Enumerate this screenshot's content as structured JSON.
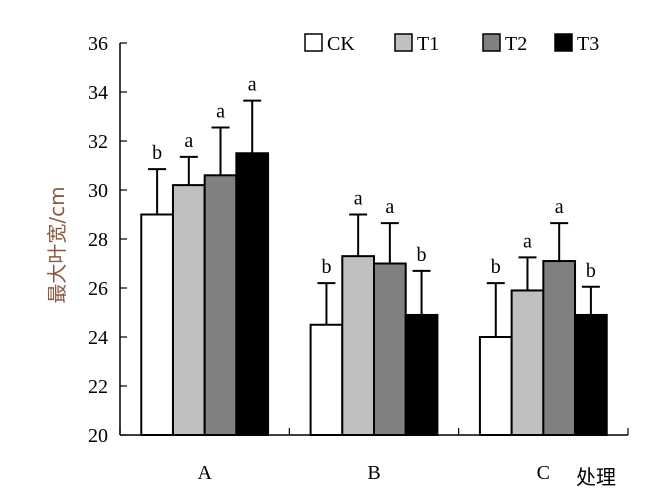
{
  "chart_data": {
    "type": "bar",
    "title": "",
    "xlabel": "处理",
    "ylabel": "最大叶宽/cm",
    "ylim": [
      20,
      36
    ],
    "yticks": [
      20,
      22,
      24,
      26,
      28,
      30,
      32,
      34,
      36
    ],
    "categories": [
      "A",
      "B",
      "C"
    ],
    "legend_position": "top-right",
    "grid": false,
    "series": [
      {
        "name": "CK",
        "color": "#ffffff",
        "values": [
          29.0,
          24.5,
          24.0
        ],
        "errors": [
          1.85,
          1.7,
          2.2
        ],
        "labels": [
          "b",
          "b",
          "b"
        ]
      },
      {
        "name": "T1",
        "color": "#c0c0c0",
        "values": [
          30.2,
          27.3,
          25.9
        ],
        "errors": [
          1.15,
          1.7,
          1.35
        ],
        "labels": [
          "a",
          "a",
          "a"
        ]
      },
      {
        "name": "T2",
        "color": "#808080",
        "values": [
          30.6,
          27.0,
          27.1
        ],
        "errors": [
          1.95,
          1.65,
          1.55
        ],
        "labels": [
          "a",
          "a",
          "a"
        ]
      },
      {
        "name": "T3",
        "color": "#000000",
        "values": [
          31.5,
          24.9,
          24.9
        ],
        "errors": [
          2.15,
          1.8,
          1.15
        ],
        "labels": [
          "a",
          "b",
          "b"
        ]
      }
    ]
  }
}
